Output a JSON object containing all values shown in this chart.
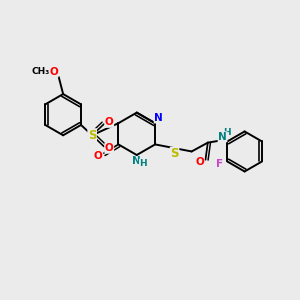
{
  "bg_color": "#ebebeb",
  "bond_color": "#000000",
  "bond_width": 1.4,
  "atom_colors": {
    "C": "#000000",
    "N": "#0000ff",
    "O": "#ff0000",
    "S": "#bbbb00",
    "F": "#cc44cc",
    "H": "#888888",
    "NH": "#008080"
  },
  "figsize": [
    3.0,
    3.0
  ],
  "dpi": 100
}
